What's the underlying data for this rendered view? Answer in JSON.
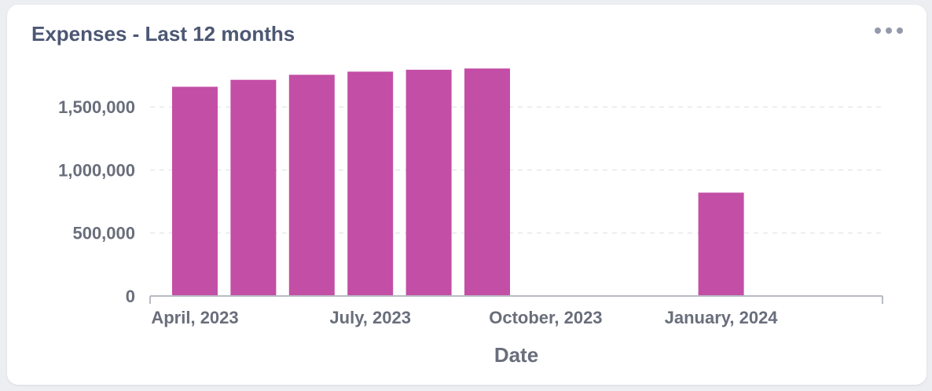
{
  "card": {
    "title": "Expenses - Last 12 months",
    "menu_icon": "more-dots-icon"
  },
  "chart_data": {
    "type": "bar",
    "title": "Expenses - Last 12 months",
    "xlabel": "Date",
    "ylabel": "",
    "x_ticks": [
      "April, 2023",
      "July, 2023",
      "October, 2023",
      "January, 2024"
    ],
    "y_ticks": [
      0,
      500000,
      1000000,
      1500000
    ],
    "ylim": [
      0,
      1850000
    ],
    "categories": [
      "2023-04",
      "2023-05",
      "2023-06",
      "2023-07",
      "2023-08",
      "2023-09",
      "2023-10",
      "2023-11",
      "2023-12",
      "2024-01",
      "2024-02",
      "2024-03"
    ],
    "values": [
      1660000,
      1715000,
      1755000,
      1780000,
      1795000,
      1805000,
      0,
      0,
      0,
      820000,
      0,
      0
    ],
    "bar_color": "#c34ea6",
    "grid": true,
    "legend": "none"
  }
}
